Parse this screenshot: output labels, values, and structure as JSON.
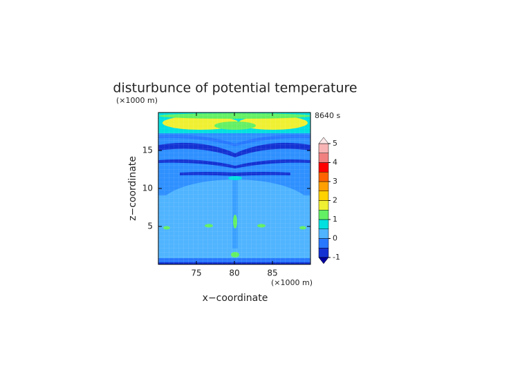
{
  "chart_data": {
    "type": "contour",
    "title": "disturbunce of potential temperature",
    "y_unit": "(×1000 m)",
    "x_unit": "(×1000 m)",
    "time_label": "8640 s",
    "xlabel": "x−coordinate",
    "ylabel": "z−coordinate",
    "xlim": [
      70,
      90
    ],
    "xticks": [
      75,
      80,
      85
    ],
    "ylim": [
      0,
      20
    ],
    "yticks": [
      5,
      10,
      15
    ],
    "colorbar": {
      "levels": [
        -1,
        -0.5,
        0,
        0.5,
        1,
        1.5,
        2,
        2.5,
        3,
        3.5,
        4,
        4.5,
        5
      ],
      "colors": [
        "#1432d2",
        "#2878ff",
        "#50b4ff",
        "#00e0e0",
        "#64f064",
        "#f0f032",
        "#ffd200",
        "#ffa000",
        "#ff6400",
        "#ff0000",
        "#f08080",
        "#f8b4b4"
      ],
      "under_color": "#0000a0",
      "over_color": "#fde8e8",
      "ticks": [
        -1,
        0,
        1,
        2,
        3,
        4,
        5
      ]
    }
  }
}
